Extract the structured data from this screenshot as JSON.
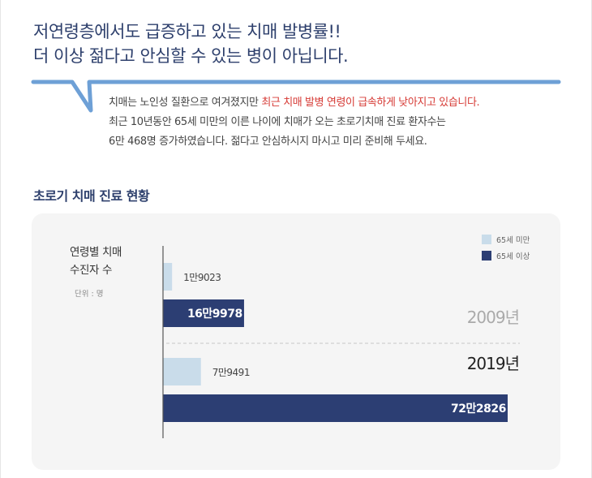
{
  "headline": {
    "line1": "저연령층에서도 급증하고 있는 치매 발병률!!",
    "line2": "더 이상 젊다고 안심할 수 있는 병이 아닙니다."
  },
  "description": {
    "line1_normal": "치매는 노인성 질환으로 여겨졌지만 ",
    "line1_highlight": "최근 치매 발병 연령이 급속하게 낮아지고 있습니다.",
    "line2": "최근 10년동안 65세 미만의 이른 나이에 치매가 오는 초로기치매  진료 환자수는",
    "line3": "6만 468명 증가하였습니다. 젊다고 안심하시지 마시고 미리 준비해 두세요."
  },
  "section_title": "초로기 치매 진료 현황",
  "colors": {
    "title": "#2d3f6c",
    "accent_line": "#6ea0d6",
    "under65": "#c9dcea",
    "over65": "#2c3e73",
    "panel": "#f5f5f5",
    "highlight": "#d63a35"
  },
  "chart_data": {
    "type": "bar",
    "orientation": "horizontal",
    "ylabel_line1": "연령별 치매",
    "ylabel_line2": "수진자 수",
    "unit_label": "단위 : 명",
    "legend_position": "top-right",
    "xlim": [
      0,
      750000
    ],
    "categories": [
      "2009년",
      "2019년"
    ],
    "series": [
      {
        "name": "65세 미만",
        "values": [
          19023,
          79491
        ],
        "labels": [
          "1만9023",
          "7만9491"
        ]
      },
      {
        "name": "65세 이상",
        "values": [
          169978,
          722826
        ],
        "labels": [
          "16만9978",
          "72만2826"
        ]
      }
    ]
  }
}
